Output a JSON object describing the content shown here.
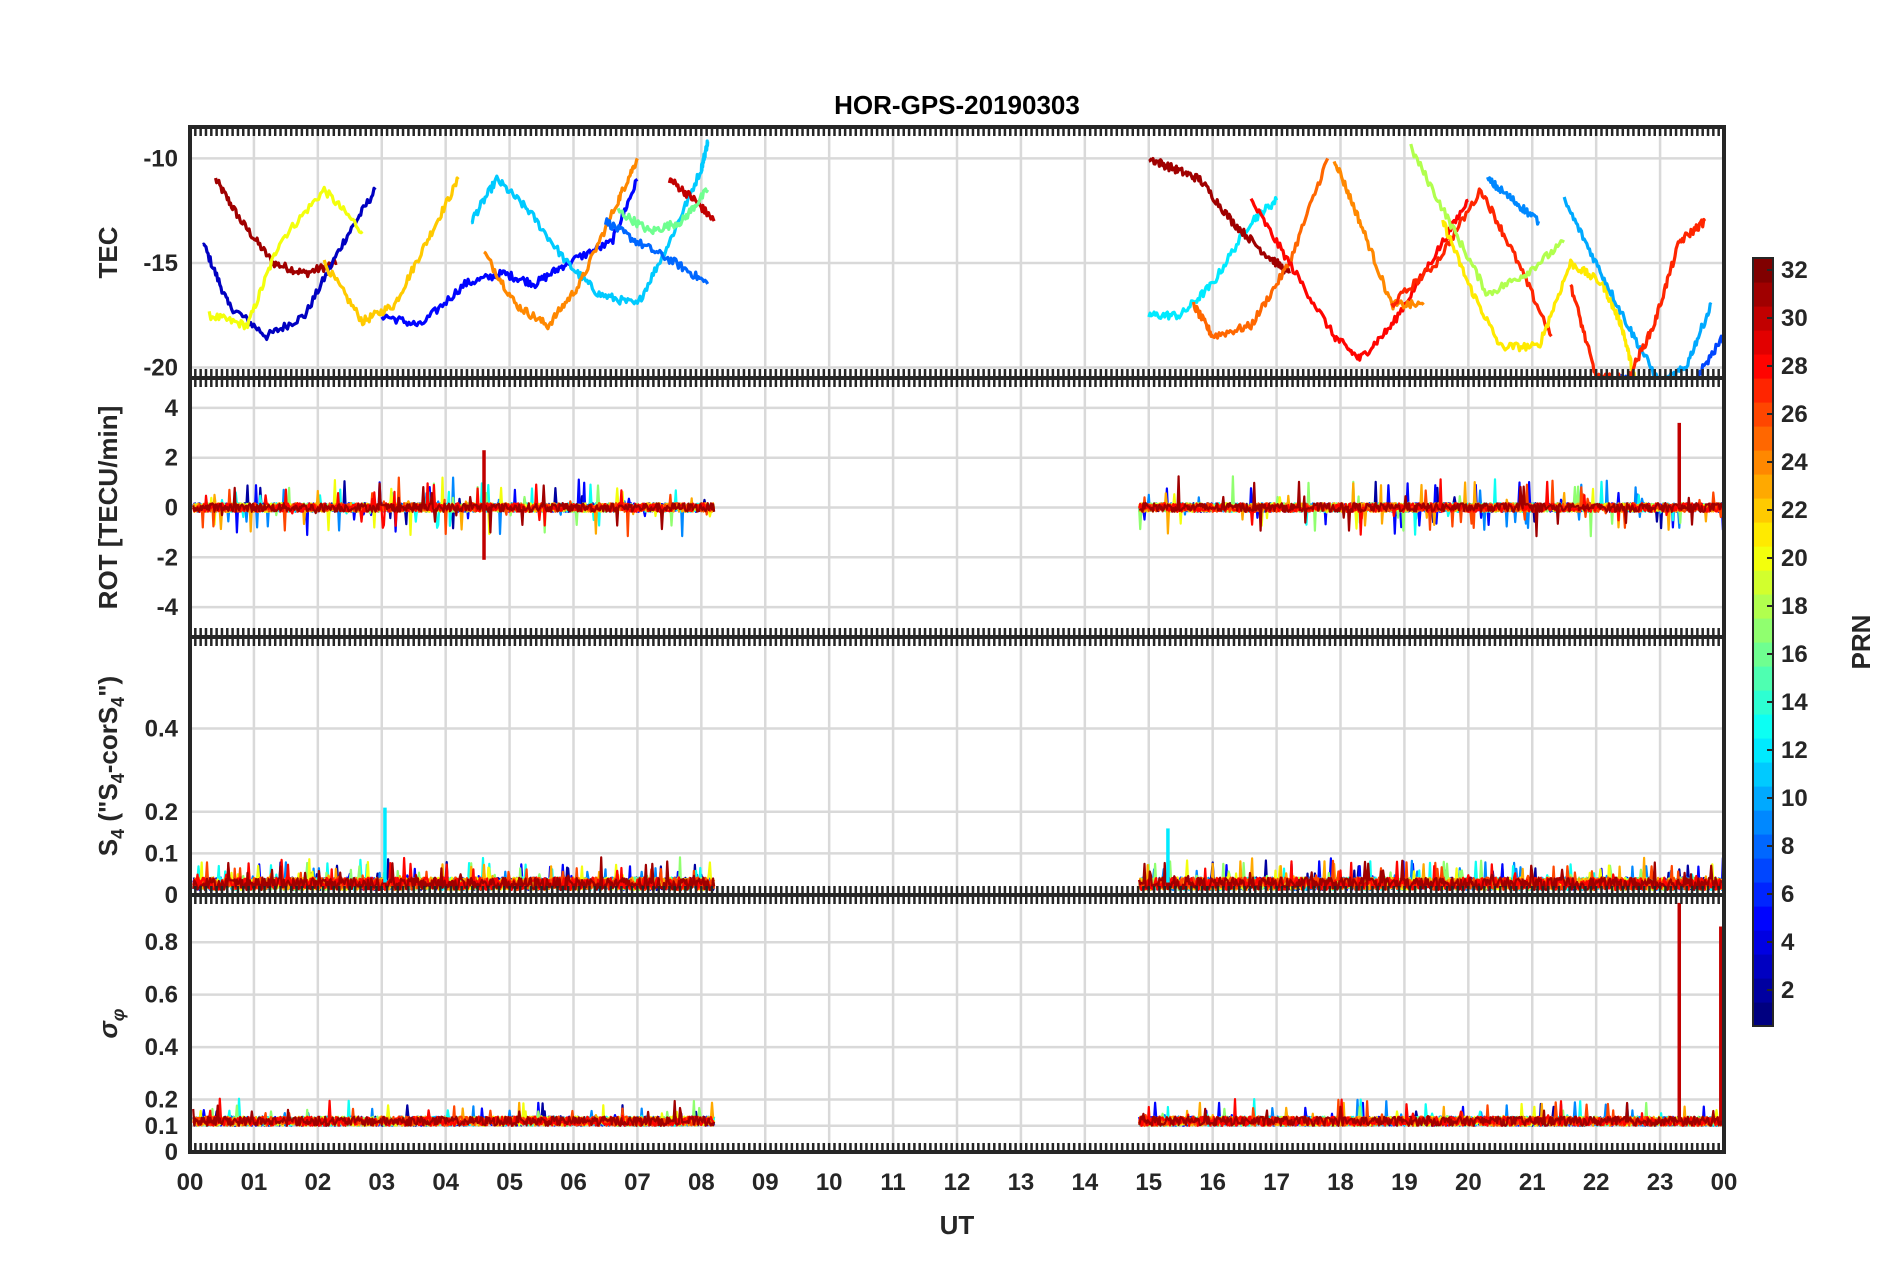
{
  "chart_data": {
    "type": "line",
    "title": "HOR-GPS-20190303",
    "xlabel": "UT",
    "xlim": [
      0,
      24
    ],
    "x_ticks": [
      0,
      1,
      2,
      3,
      4,
      5,
      6,
      7,
      8,
      9,
      10,
      11,
      12,
      13,
      14,
      15,
      16,
      17,
      18,
      19,
      20,
      21,
      22,
      23,
      24
    ],
    "x_tick_labels": [
      "00",
      "01",
      "02",
      "03",
      "04",
      "05",
      "06",
      "07",
      "08",
      "09",
      "10",
      "11",
      "12",
      "13",
      "14",
      "15",
      "16",
      "17",
      "18",
      "19",
      "20",
      "21",
      "22",
      "23",
      "00"
    ],
    "data_gap_hours": [
      8.2,
      14.85
    ],
    "panels": [
      {
        "name": "TEC",
        "ylabel": "TEC",
        "ylim": [
          -20.5,
          -8.5
        ],
        "ticks": [
          -10,
          -15,
          -20
        ],
        "tick_labels": [
          "-10",
          "-15",
          "-20"
        ]
      },
      {
        "name": "ROT",
        "ylabel": "ROT [TECU/min]",
        "ylim": [
          -5.2,
          5.2
        ],
        "ticks": [
          -4,
          -2,
          0,
          2,
          4
        ],
        "tick_labels": [
          "-4",
          "-2",
          "0",
          "2",
          "4"
        ]
      },
      {
        "name": "S4",
        "ylabel_parts": [
          "S",
          "4",
          " (\"S",
          "4",
          "-corS",
          "4",
          "\")"
        ],
        "ylim": [
          0,
          0.62
        ],
        "ticks": [
          0,
          0.1,
          0.2,
          0.4
        ],
        "tick_labels": [
          "0",
          "0.1",
          "0.2",
          "0.4"
        ]
      },
      {
        "name": "sigma_phi",
        "ylabel_parts": [
          "σ",
          "φ"
        ],
        "ylim": [
          0,
          0.98
        ],
        "ticks": [
          0,
          0.1,
          0.2,
          0.4,
          0.6,
          0.8
        ],
        "tick_labels": [
          "0",
          "0.1",
          "0.2",
          "0.4",
          "0.6",
          "0.8"
        ]
      }
    ],
    "colorbar": {
      "label": "PRN",
      "range": [
        1,
        32
      ],
      "colormap": "jet",
      "ticks": [
        2,
        4,
        6,
        8,
        10,
        12,
        14,
        16,
        18,
        20,
        22,
        24,
        26,
        28,
        30,
        32
      ],
      "tick_labels": [
        "2",
        "4",
        "6",
        "8",
        "10",
        "12",
        "14",
        "16",
        "18",
        "20",
        "22",
        "24",
        "26",
        "28",
        "30",
        "32"
      ]
    },
    "approx_series": [
      {
        "prn": 31,
        "panel": "TEC",
        "x": [
          0.4,
          0.8,
          1.3,
          1.8,
          2.3
        ],
        "y": [
          -11,
          -13,
          -15,
          -15.5,
          -15
        ]
      },
      {
        "prn": 3,
        "panel": "TEC",
        "x": [
          0.2,
          0.6,
          1.2,
          1.8,
          2.4,
          2.9
        ],
        "y": [
          -14,
          -17,
          -18.5,
          -17.5,
          -14,
          -11.5
        ]
      },
      {
        "prn": 20,
        "panel": "TEC",
        "x": [
          0.3,
          0.9,
          1.4,
          2.1,
          2.7
        ],
        "y": [
          -17.5,
          -18,
          -14,
          -11.5,
          -13.5
        ]
      },
      {
        "prn": 22,
        "panel": "TEC",
        "x": [
          2.1,
          2.7,
          3.2,
          3.7,
          4.2
        ],
        "y": [
          -15,
          -17.8,
          -17,
          -14,
          -11
        ]
      },
      {
        "prn": 5,
        "panel": "TEC",
        "x": [
          3.0,
          3.6,
          4.3,
          4.9,
          5.4,
          5.9,
          6.6,
          7.0
        ],
        "y": [
          -17.5,
          -18,
          -16,
          -15.5,
          -16,
          -15,
          -14,
          -11
        ]
      },
      {
        "prn": 11,
        "panel": "TEC",
        "x": [
          4.4,
          4.8,
          5.3,
          5.9,
          6.4,
          7.0,
          7.5,
          8.0,
          8.1
        ],
        "y": [
          -13,
          -11,
          -12.5,
          -15,
          -16.5,
          -17,
          -14,
          -10.5,
          -9.2
        ]
      },
      {
        "prn": 24,
        "panel": "TEC",
        "x": [
          4.6,
          5.1,
          5.6,
          6.1,
          6.7,
          7.0
        ],
        "y": [
          -14.5,
          -17,
          -18,
          -16,
          -12,
          -10
        ]
      },
      {
        "prn": 8,
        "panel": "TEC",
        "x": [
          6.5,
          7.0,
          7.6,
          8.1
        ],
        "y": [
          -13,
          -14,
          -15,
          -16
        ]
      },
      {
        "prn": 30,
        "panel": "TEC",
        "x": [
          7.5,
          7.9,
          8.2
        ],
        "y": [
          -11,
          -12,
          -13
        ]
      },
      {
        "prn": 16,
        "panel": "TEC",
        "x": [
          6.7,
          7.2,
          7.7,
          8.1
        ],
        "y": [
          -12.5,
          -13.5,
          -13,
          -11.5
        ]
      },
      {
        "prn": 12,
        "panel": "TEC",
        "x": [
          15.0,
          15.5,
          16.0,
          16.6,
          17.0
        ],
        "y": [
          -17.5,
          -17.5,
          -16,
          -13,
          -12
        ]
      },
      {
        "prn": 31,
        "panel": "TEC",
        "x": [
          15.0,
          15.4,
          15.8,
          16.3,
          16.8,
          17.2
        ],
        "y": [
          -10,
          -10.5,
          -11,
          -13,
          -14.5,
          -15.5
        ]
      },
      {
        "prn": 25,
        "panel": "TEC",
        "x": [
          15.7,
          16.0,
          16.6,
          17.2,
          17.8
        ],
        "y": [
          -17,
          -18.5,
          -18,
          -15,
          -10
        ]
      },
      {
        "prn": 28,
        "panel": "TEC",
        "x": [
          16.6,
          17.2,
          17.9,
          18.3,
          18.8,
          19.4,
          20.0
        ],
        "y": [
          -12,
          -15,
          -18.5,
          -19.6,
          -18,
          -15,
          -12
        ]
      },
      {
        "prn": 24,
        "panel": "TEC",
        "x": [
          17.9,
          18.3,
          18.8,
          19.3
        ],
        "y": [
          -10,
          -13,
          -17,
          -17
        ]
      },
      {
        "prn": 27,
        "panel": "TEC",
        "x": [
          18.8,
          19.5,
          20.2,
          20.7,
          21.3
        ],
        "y": [
          -17,
          -15,
          -11.5,
          -14.5,
          -18.5
        ]
      },
      {
        "prn": 18,
        "panel": "TEC",
        "x": [
          19.1,
          19.7,
          20.3,
          20.9,
          21.5
        ],
        "y": [
          -9.5,
          -13,
          -16.5,
          -15.5,
          -14
        ]
      },
      {
        "prn": 21,
        "panel": "TEC",
        "x": [
          19.6,
          20.0,
          20.5,
          21.1,
          21.6,
          22.1,
          22.4,
          22.6
        ],
        "y": [
          -13,
          -16,
          -19,
          -19,
          -15,
          -16,
          -18,
          -20.5
        ]
      },
      {
        "prn": 10,
        "panel": "TEC",
        "x": [
          21.5,
          22.0,
          22.5,
          23.0,
          23.4,
          23.8
        ],
        "y": [
          -12,
          -15,
          -18,
          -20.8,
          -20,
          -17
        ]
      },
      {
        "prn": 27,
        "panel": "TEC",
        "x": [
          21.6,
          22.0,
          22.5,
          22.9,
          23.3,
          23.7
        ],
        "y": [
          -16,
          -20.5,
          -20.5,
          -18,
          -14,
          -13
        ]
      },
      {
        "prn": 9,
        "panel": "TEC",
        "x": [
          20.3,
          20.7,
          21.1
        ],
        "y": [
          -11,
          -12,
          -13
        ]
      },
      {
        "prn": 7,
        "panel": "TEC",
        "x": [
          22.4,
          22.9,
          23.5,
          24.0
        ],
        "y": [
          -20.5,
          -20.8,
          -20.8,
          -18.5
        ]
      }
    ],
    "notable_spikes": [
      {
        "panel": "ROT",
        "x": 4.6,
        "y": 2.3
      },
      {
        "panel": "ROT",
        "x": 4.6,
        "y": -2.1
      },
      {
        "panel": "ROT",
        "x": 23.3,
        "y": 3.4
      },
      {
        "panel": "S4",
        "x": 3.05,
        "y": 0.21
      },
      {
        "panel": "S4",
        "x": 15.3,
        "y": 0.16
      },
      {
        "panel": "sigma_phi",
        "x": 23.3,
        "y": 0.95
      },
      {
        "panel": "sigma_phi",
        "x": 23.95,
        "y": 0.86
      }
    ]
  }
}
